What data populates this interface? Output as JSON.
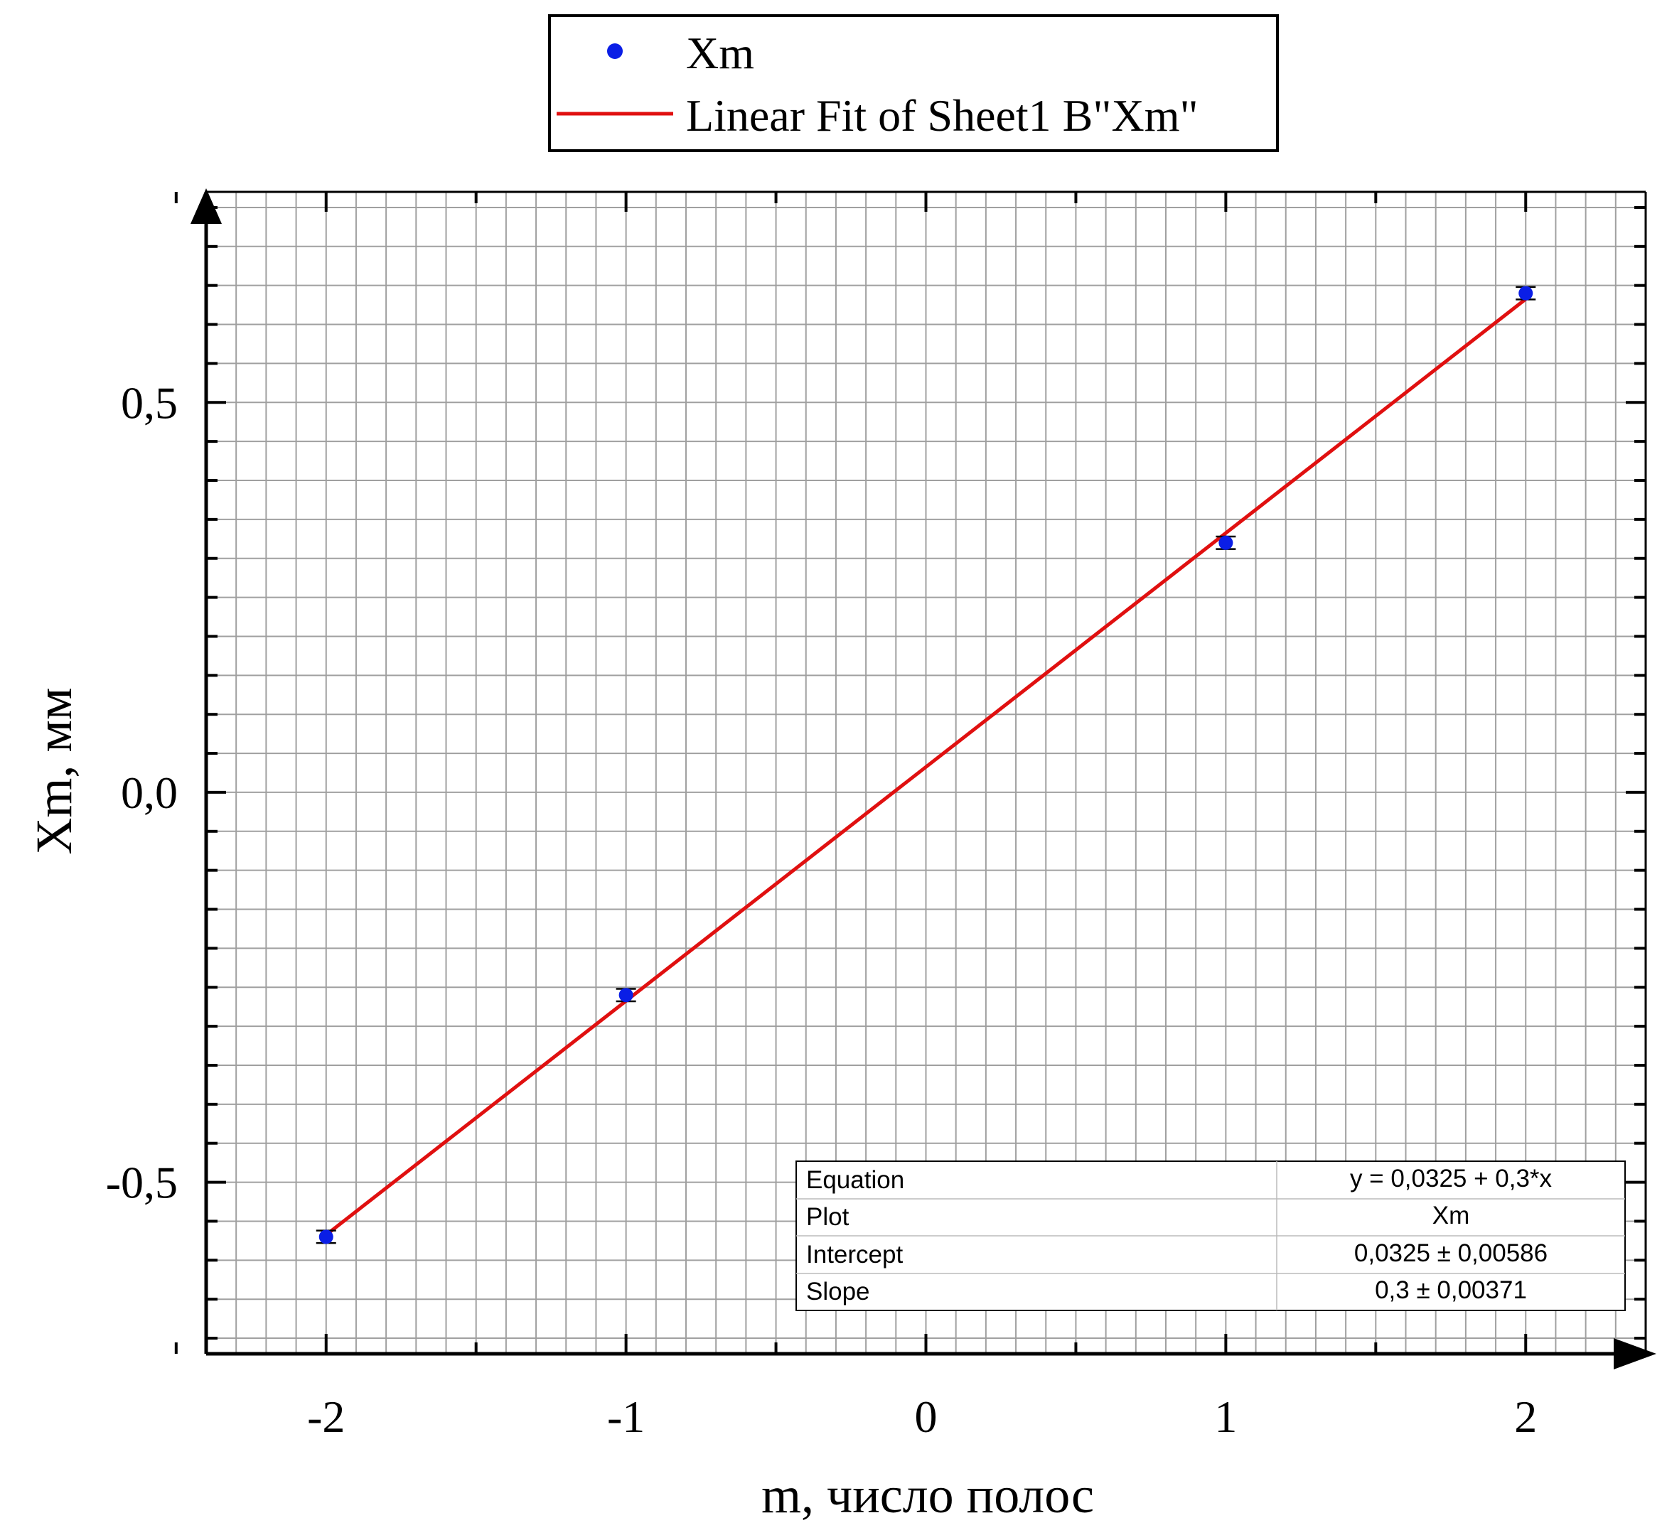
{
  "chart_data": {
    "type": "scatter",
    "xlabel": "m, число полос",
    "ylabel": "Xm, мм",
    "xlim": [
      -2.4,
      2.4
    ],
    "ylim": [
      -0.72,
      0.77
    ],
    "x_ticks": [
      {
        "value": -2,
        "label": "-2"
      },
      {
        "value": -1,
        "label": "-1"
      },
      {
        "value": 0,
        "label": "0"
      },
      {
        "value": 1,
        "label": "1"
      },
      {
        "value": 2,
        "label": "2"
      }
    ],
    "y_ticks": [
      {
        "value": -0.5,
        "label": "-0,5"
      },
      {
        "value": 0.0,
        "label": "0,0"
      },
      {
        "value": 0.5,
        "label": "0,5"
      }
    ],
    "grid": true,
    "legend": {
      "placement": "top-center",
      "entries": [
        {
          "label": "Xm",
          "kind": "marker",
          "color": "#0a1ee6"
        },
        {
          "label": "Linear Fit of Sheet1 B\"Xm\"",
          "kind": "line",
          "color": "#e01010"
        }
      ]
    },
    "series": [
      {
        "name": "Xm",
        "color": "#0a1ee6",
        "x": [
          -2,
          -1,
          1,
          2
        ],
        "y": [
          -0.57,
          -0.26,
          0.32,
          0.64
        ],
        "error": [
          0.008,
          0.008,
          0.008,
          0.008
        ]
      }
    ],
    "fit": {
      "name": "Linear Fit of Sheet1 B\"Xm\"",
      "color": "#e01010",
      "intercept": 0.0325,
      "slope": 0.3,
      "x_range": [
        -2,
        2
      ]
    },
    "stats_table": [
      {
        "key": "Equation",
        "value": "y = 0,0325 + 0,3*x"
      },
      {
        "key": "Plot",
        "value": "Xm"
      },
      {
        "key": "Intercept",
        "value": "0,0325 ± 0,00586"
      },
      {
        "key": "Slope",
        "value": "0,3 ± 0,00371"
      }
    ]
  }
}
